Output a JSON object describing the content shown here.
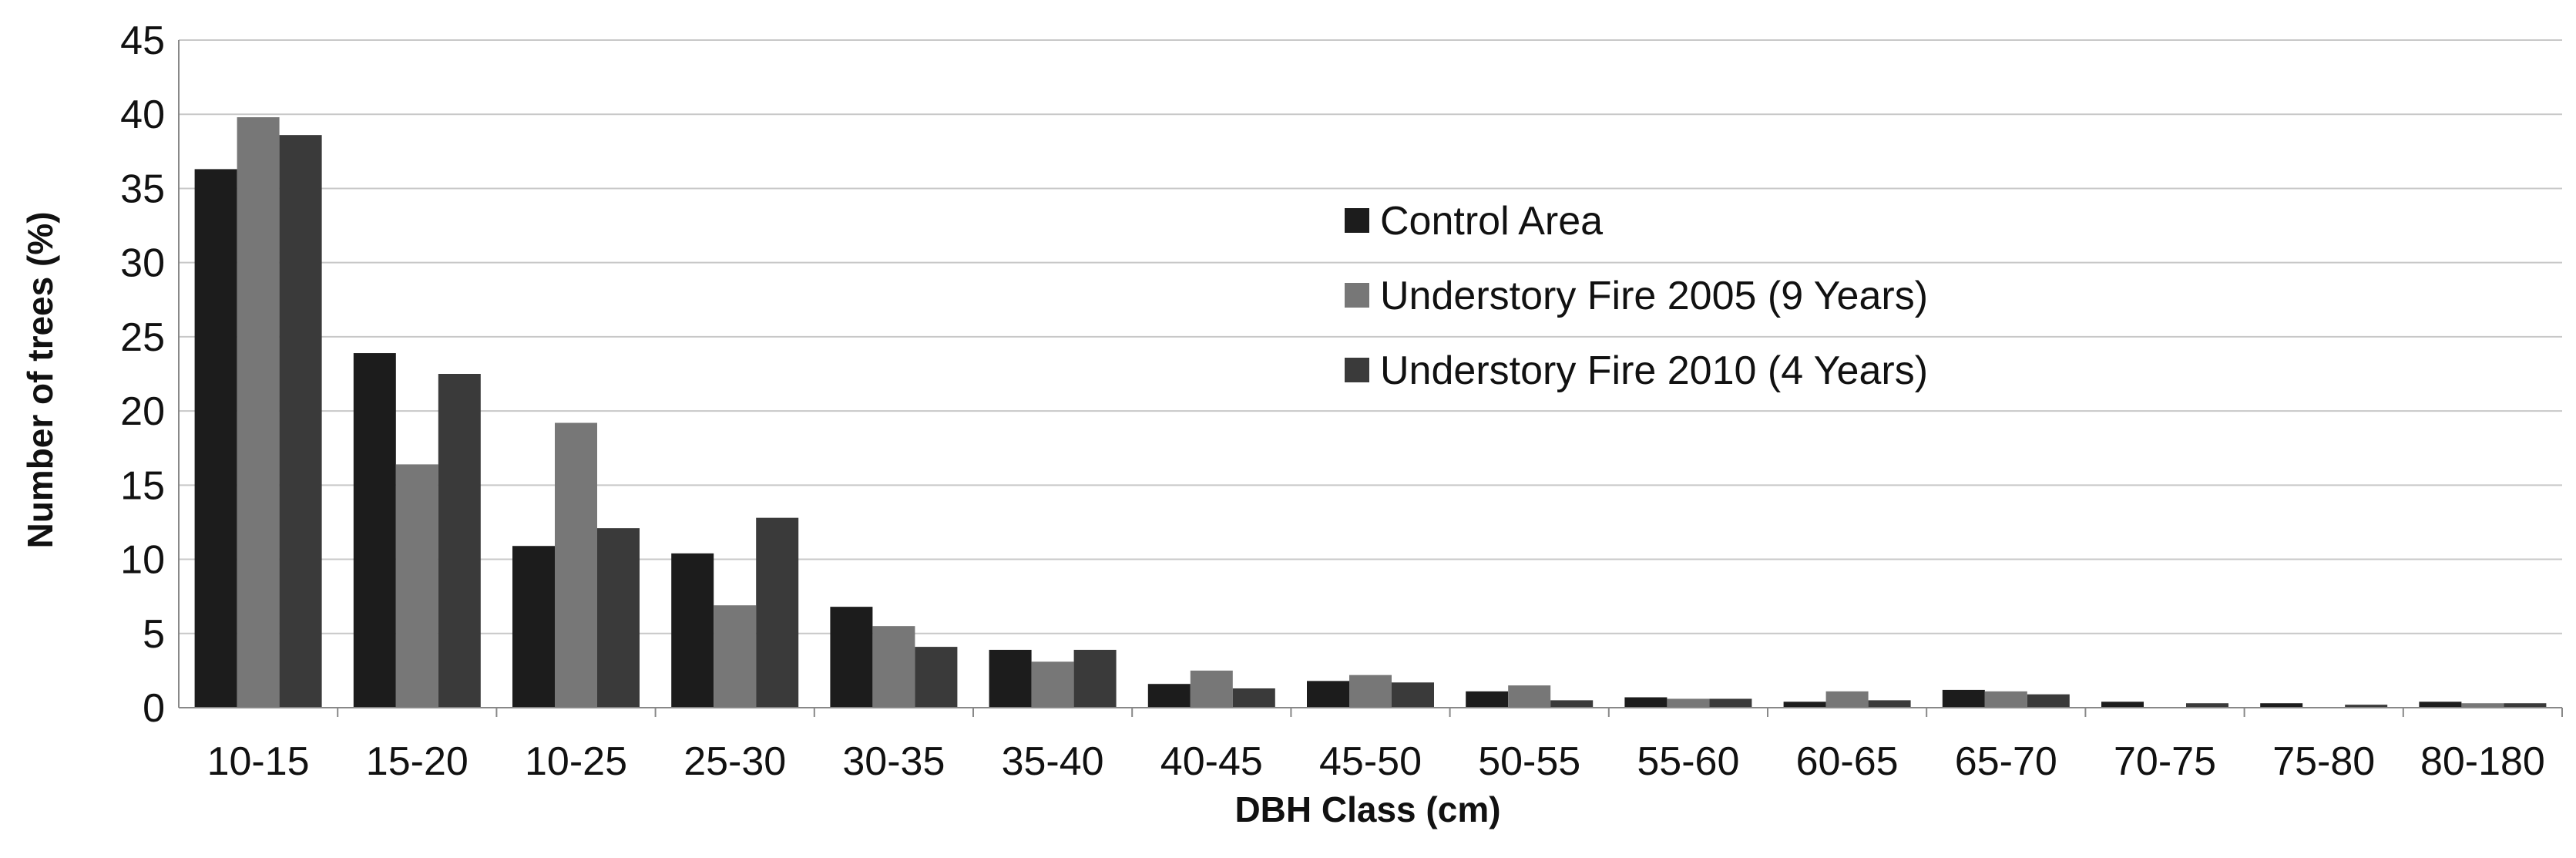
{
  "chart_data": {
    "type": "bar",
    "title": "",
    "xlabel": "DBH Class (cm)",
    "ylabel": "Number of trees (%)",
    "ylim": [
      0,
      45
    ],
    "yticks": [
      "0",
      "5",
      "10",
      "15",
      "20",
      "25",
      "30",
      "35",
      "40",
      "45"
    ],
    "grid": true,
    "legend_position": "upper-center-right",
    "categories": [
      "10-15",
      "15-20",
      "10-25",
      "25-30",
      "30-35",
      "35-40",
      "40-45",
      "45-50",
      "50-55",
      "55-60",
      "60-65",
      "65-70",
      "70-75",
      "75-80",
      "80-180"
    ],
    "series": [
      {
        "name": "Control Area",
        "color": "#1c1c1c",
        "values": [
          36.3,
          23.9,
          10.9,
          10.4,
          6.8,
          3.9,
          1.6,
          1.8,
          1.1,
          0.7,
          0.4,
          1.2,
          0.4,
          0.3,
          0.4
        ]
      },
      {
        "name": "Understory Fire 2005 (9 Years)",
        "color": "#777777",
        "values": [
          39.8,
          16.4,
          19.2,
          6.9,
          5.5,
          3.1,
          2.5,
          2.2,
          1.5,
          0.6,
          1.1,
          1.1,
          0.0,
          0.0,
          0.3
        ]
      },
      {
        "name": "Understory Fire 2010 (4 Years)",
        "color": "#3a3a3a",
        "values": [
          38.6,
          22.5,
          12.1,
          12.8,
          4.1,
          3.9,
          1.3,
          1.7,
          0.5,
          0.6,
          0.5,
          0.9,
          0.3,
          0.2,
          0.3
        ]
      }
    ]
  }
}
